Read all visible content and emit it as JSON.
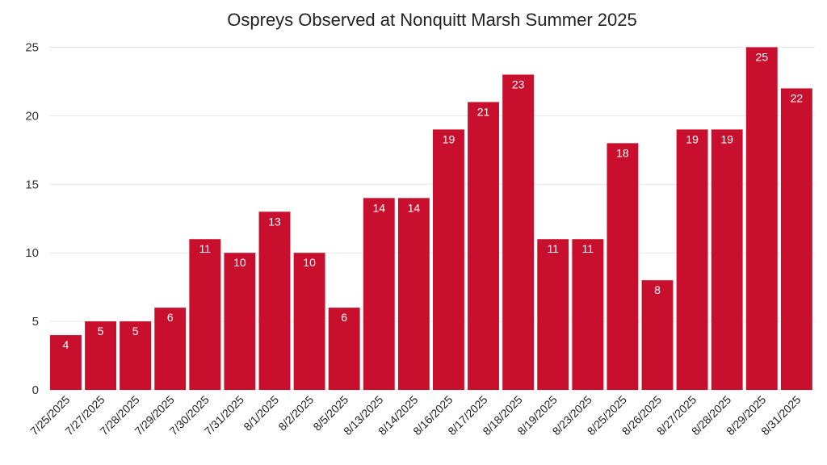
{
  "chart_data": {
    "type": "bar",
    "title": "Ospreys Observed at Nonquitt Marsh Summer 2025",
    "xlabel": "",
    "ylabel": "",
    "ylim": [
      0,
      25
    ],
    "yticks": [
      "0",
      "5",
      "10",
      "15",
      "20",
      "25"
    ],
    "grid": true,
    "bar_color": "#c8102e",
    "categories": [
      "7/25/2025",
      "7/27/2025",
      "7/28/2025",
      "7/29/2025",
      "7/30/2025",
      "7/31/2025",
      "8/1/2025",
      "8/2/2025",
      "8/5/2025",
      "8/13/2025",
      "8/14/2025",
      "8/16/2025",
      "8/17/2025",
      "8/18/2025",
      "8/19/2025",
      "8/23/2025",
      "8/25/2025",
      "8/26/2025",
      "8/27/2025",
      "8/28/2025",
      "8/29/2025",
      "8/31/2025"
    ],
    "values": [
      4,
      5,
      5,
      6,
      11,
      10,
      13,
      10,
      6,
      14,
      14,
      19,
      21,
      23,
      11,
      11,
      18,
      8,
      19,
      19,
      25,
      22
    ]
  }
}
